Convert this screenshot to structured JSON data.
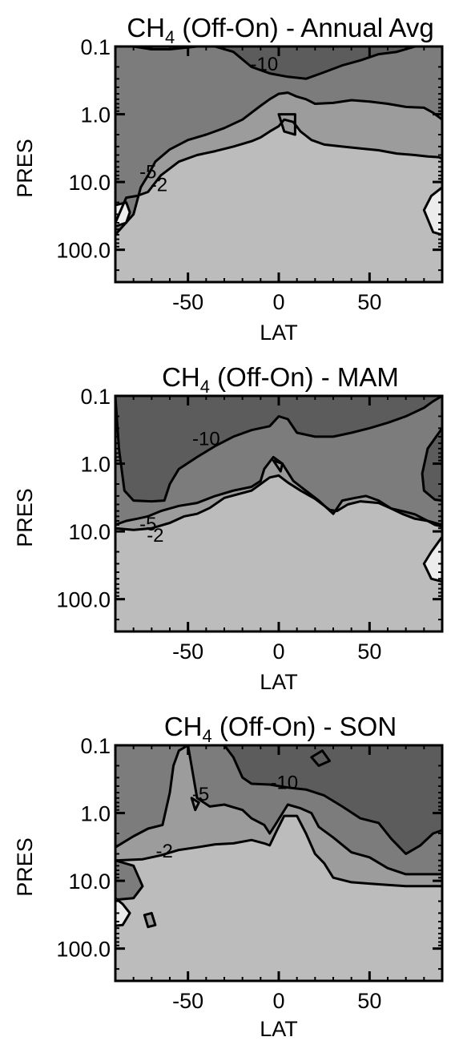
{
  "chart_data": [
    {
      "type": "contour",
      "title_base": "CH",
      "title_sub": "4",
      "title_rest": " (Off-On) - Annual Avg",
      "xlabel": "LAT",
      "ylabel": "PRES",
      "xlim": [
        -90,
        90
      ],
      "ylim": [
        0.1,
        300
      ],
      "ylog": true,
      "yreversed": true,
      "xticks": [
        {
          "v": -50,
          "label": "-50"
        },
        {
          "v": 0,
          "label": "0"
        },
        {
          "v": 50,
          "label": "50"
        }
      ],
      "yticks": [
        {
          "v": 0.1,
          "label": "0.1"
        },
        {
          "v": 1.0,
          "label": "1.0"
        },
        {
          "v": 10.0,
          "label": "10.0"
        },
        {
          "v": 100.0,
          "label": "100.0"
        }
      ],
      "contour_labels": [
        {
          "text": "-10",
          "lat": -8,
          "p": 0.19
        },
        {
          "text": "-5",
          "lat": -72,
          "p": 7.4
        },
        {
          "text": "-2",
          "lat": -66,
          "p": 11.5
        }
      ],
      "boundaries": {
        "m10": [
          [
            -90,
            0.1
          ],
          [
            -80,
            0.1
          ],
          [
            -70,
            0.11
          ],
          [
            -60,
            0.11
          ],
          [
            -45,
            0.1
          ],
          [
            -35,
            0.1
          ],
          [
            -25,
            0.12
          ],
          [
            -15,
            0.2
          ],
          [
            -5,
            0.25
          ],
          [
            5,
            0.28
          ],
          [
            15,
            0.3
          ],
          [
            25,
            0.24
          ],
          [
            35,
            0.19
          ],
          [
            45,
            0.16
          ],
          [
            55,
            0.13
          ],
          [
            65,
            0.12
          ],
          [
            75,
            0.1
          ],
          [
            90,
            0.1
          ]
        ],
        "m5": [
          [
            -90,
            60
          ],
          [
            -80,
            30
          ],
          [
            -76,
            12
          ],
          [
            -72,
            8
          ],
          [
            -68,
            5
          ],
          [
            -60,
            3.3
          ],
          [
            -50,
            2.4
          ],
          [
            -40,
            2.0
          ],
          [
            -30,
            1.6
          ],
          [
            -20,
            1.2
          ],
          [
            -10,
            0.75
          ],
          [
            -5,
            0.6
          ],
          [
            0,
            0.5
          ],
          [
            5,
            0.48
          ],
          [
            10,
            0.55
          ],
          [
            15,
            0.6
          ],
          [
            20,
            0.7
          ],
          [
            30,
            0.68
          ],
          [
            40,
            0.62
          ],
          [
            50,
            0.65
          ],
          [
            60,
            0.7
          ],
          [
            70,
            0.78
          ],
          [
            80,
            0.8
          ],
          [
            85,
            0.95
          ],
          [
            90,
            1.2
          ]
        ],
        "m2": [
          [
            -90,
            40
          ],
          [
            -84,
            17
          ],
          [
            -78,
            16
          ],
          [
            -72,
            14
          ],
          [
            -65,
            8
          ],
          [
            -55,
            5
          ],
          [
            -45,
            4
          ],
          [
            -35,
            3.5
          ],
          [
            -25,
            3
          ],
          [
            -15,
            2.5
          ],
          [
            -10,
            2.2
          ],
          [
            -5,
            1.8
          ],
          [
            0,
            1.5
          ],
          [
            3,
            1.2
          ],
          [
            8,
            1.3
          ],
          [
            12,
            1.8
          ],
          [
            18,
            2.4
          ],
          [
            25,
            2.8
          ],
          [
            35,
            3.0
          ],
          [
            45,
            3.2
          ],
          [
            55,
            3.4
          ],
          [
            65,
            3.8
          ],
          [
            75,
            4.0
          ],
          [
            82,
            4.2
          ],
          [
            88,
            4.3
          ],
          [
            90,
            4.5
          ]
        ],
        "islands_m5": [
          [
            [
              0,
              1.0
            ],
            [
              9,
              1.0
            ],
            [
              9,
              2.0
            ],
            [
              3,
              1.8
            ]
          ]
        ],
        "islands_pos": [
          [
            [
              -90,
              22
            ],
            [
              -84,
              20
            ],
            [
              -82,
              28
            ],
            [
              -84,
              40
            ],
            [
              -90,
              45
            ]
          ],
          [
            [
              90,
              12
            ],
            [
              84,
              16
            ],
            [
              80,
              26
            ],
            [
              85,
              55
            ],
            [
              90,
              60
            ]
          ]
        ]
      }
    },
    {
      "type": "contour",
      "title_base": "CH",
      "title_sub": "4",
      "title_rest": " (Off-On) - MAM",
      "xlabel": "LAT",
      "ylabel": "PRES",
      "xlim": [
        -90,
        90
      ],
      "ylim": [
        0.1,
        300
      ],
      "ylog": true,
      "yreversed": true,
      "xticks": [
        {
          "v": -50,
          "label": "-50"
        },
        {
          "v": 0,
          "label": "0"
        },
        {
          "v": 50,
          "label": "50"
        }
      ],
      "yticks": [
        {
          "v": 0.1,
          "label": "0.1"
        },
        {
          "v": 1.0,
          "label": "1.0"
        },
        {
          "v": 10.0,
          "label": "10.0"
        },
        {
          "v": 100.0,
          "label": "100.0"
        }
      ],
      "contour_labels": [
        {
          "text": "-10",
          "lat": -40,
          "p": 0.45
        },
        {
          "text": "-5",
          "lat": -72,
          "p": 8.2
        },
        {
          "text": "-2",
          "lat": -68,
          "p": 12
        }
      ],
      "boundaries": {
        "m10": [
          [
            -90,
            0.1
          ],
          [
            -88,
            0.6
          ],
          [
            -85,
            2.5
          ],
          [
            -80,
            3.5
          ],
          [
            -70,
            3.6
          ],
          [
            -63,
            3.5
          ],
          [
            -60,
            2.0
          ],
          [
            -55,
            1.2
          ],
          [
            -45,
            0.8
          ],
          [
            -35,
            0.55
          ],
          [
            -25,
            0.4
          ],
          [
            -15,
            0.32
          ],
          [
            -5,
            0.28
          ],
          [
            0,
            0.2
          ],
          [
            5,
            0.22
          ],
          [
            10,
            0.35
          ],
          [
            20,
            0.4
          ],
          [
            30,
            0.4
          ],
          [
            40,
            0.35
          ],
          [
            50,
            0.3
          ],
          [
            60,
            0.25
          ],
          [
            70,
            0.2
          ],
          [
            80,
            0.15
          ],
          [
            85,
            0.12
          ],
          [
            90,
            0.1
          ]
        ],
        "m5": [
          [
            -90,
            8
          ],
          [
            -84,
            7
          ],
          [
            -78,
            6.5
          ],
          [
            -72,
            6
          ],
          [
            -65,
            5
          ],
          [
            -55,
            4.2
          ],
          [
            -45,
            3.8
          ],
          [
            -35,
            3
          ],
          [
            -25,
            2.5
          ],
          [
            -15,
            2.2
          ],
          [
            -10,
            1.8
          ],
          [
            -8,
            1.2
          ],
          [
            -3,
            0.8
          ],
          [
            2,
            1.0
          ],
          [
            8,
            1.8
          ],
          [
            14,
            2.4
          ],
          [
            22,
            3.5
          ],
          [
            30,
            5.5
          ],
          [
            35,
            3.5
          ],
          [
            42,
            3.2
          ],
          [
            48,
            3.0
          ],
          [
            55,
            3.5
          ],
          [
            62,
            4.6
          ],
          [
            68,
            5.5
          ],
          [
            75,
            6.5
          ],
          [
            82,
            7.0
          ],
          [
            86,
            7.5
          ],
          [
            90,
            8
          ]
        ],
        "m2": [
          [
            -90,
            9
          ],
          [
            -80,
            9.5
          ],
          [
            -70,
            9
          ],
          [
            -60,
            7.5
          ],
          [
            -52,
            6
          ],
          [
            -45,
            5.5
          ],
          [
            -38,
            4.5
          ],
          [
            -30,
            3.2
          ],
          [
            -22,
            2.8
          ],
          [
            -15,
            2.5
          ],
          [
            -10,
            2.0
          ],
          [
            -5,
            1.6
          ],
          [
            0,
            1.5
          ],
          [
            5,
            1.9
          ],
          [
            12,
            2.5
          ],
          [
            20,
            3.3
          ],
          [
            28,
            4.8
          ],
          [
            32,
            5.0
          ],
          [
            38,
            4.0
          ],
          [
            45,
            3.6
          ],
          [
            55,
            3.8
          ],
          [
            62,
            4.6
          ],
          [
            68,
            5.0
          ],
          [
            75,
            5.6
          ],
          [
            82,
            7.0
          ],
          [
            86,
            8.0
          ],
          [
            90,
            8.5
          ]
        ],
        "islands_m10_right": [
          [
            [
              90,
              0.3
            ],
            [
              82,
              0.6
            ],
            [
              79,
              1.4
            ],
            [
              80,
              2.5
            ],
            [
              86,
              3.4
            ],
            [
              90,
              3.5
            ]
          ]
        ],
        "islands_m5": [
          [
            [
              -3,
              0.9
            ],
            [
              2,
              1.0
            ],
            [
              1,
              1.3
            ]
          ]
        ],
        "islands_pos": [
          [
            [
              90,
              12
            ],
            [
              84,
              20
            ],
            [
              80,
              30
            ],
            [
              84,
              50
            ],
            [
              90,
              55
            ]
          ]
        ]
      }
    },
    {
      "type": "contour",
      "title_base": "CH",
      "title_sub": "4",
      "title_rest": " (Off-On) - SON",
      "xlabel": "LAT",
      "ylabel": "PRES",
      "xlim": [
        -90,
        90
      ],
      "ylim": [
        0.1,
        300
      ],
      "ylog": true,
      "yreversed": true,
      "xticks": [
        {
          "v": -50,
          "label": "-50"
        },
        {
          "v": 0,
          "label": "0"
        },
        {
          "v": 50,
          "label": "50"
        }
      ],
      "yticks": [
        {
          "v": 0.1,
          "label": "0.1"
        },
        {
          "v": 1.0,
          "label": "1.0"
        },
        {
          "v": 10.0,
          "label": "10.0"
        },
        {
          "v": 100.0,
          "label": "100.0"
        }
      ],
      "contour_labels": [
        {
          "text": "-5",
          "lat": -43,
          "p": 0.55
        },
        {
          "text": "-10",
          "lat": 3,
          "p": 0.37
        },
        {
          "text": "-2",
          "lat": -63,
          "p": 3.8
        }
      ],
      "boundaries": {
        "m10": [
          [
            -90,
            0.1
          ],
          [
            -30,
            0.1
          ],
          [
            -25,
            0.15
          ],
          [
            -20,
            0.3
          ],
          [
            -15,
            0.37
          ],
          [
            -5,
            0.38
          ],
          [
            5,
            0.42
          ],
          [
            15,
            0.45
          ],
          [
            25,
            0.55
          ],
          [
            35,
            0.8
          ],
          [
            45,
            1.2
          ],
          [
            55,
            1.4
          ],
          [
            62,
            2.4
          ],
          [
            70,
            4.0
          ],
          [
            78,
            3.0
          ],
          [
            85,
            2.0
          ],
          [
            90,
            1.8
          ]
        ],
        "m5": [
          [
            -90,
            3.2
          ],
          [
            -80,
            2.2
          ],
          [
            -72,
            1.7
          ],
          [
            -64,
            1.5
          ],
          [
            -60,
            0.5
          ],
          [
            -58,
            0.2
          ],
          [
            -55,
            0.12
          ],
          [
            -50,
            0.1
          ],
          [
            -45,
            0.6
          ],
          [
            -38,
            0.8
          ],
          [
            -30,
            0.75
          ],
          [
            -20,
            0.9
          ],
          [
            -15,
            1.2
          ],
          [
            -8,
            1.5
          ],
          [
            -5,
            2.0
          ],
          [
            -2,
            1.5
          ],
          [
            5,
            0.75
          ],
          [
            12,
            0.85
          ],
          [
            18,
            1.0
          ],
          [
            22,
            1.6
          ],
          [
            30,
            2.3
          ],
          [
            40,
            3.8
          ],
          [
            50,
            4.5
          ],
          [
            60,
            6.5
          ],
          [
            70,
            8.0
          ],
          [
            80,
            8.0
          ],
          [
            90,
            8.0
          ]
        ],
        "m2": [
          [
            -90,
            5
          ],
          [
            -75,
            4.8
          ],
          [
            -65,
            4.2
          ],
          [
            -55,
            3.5
          ],
          [
            -45,
            3.2
          ],
          [
            -35,
            2.9
          ],
          [
            -25,
            2.8
          ],
          [
            -15,
            2.5
          ],
          [
            -8,
            2.8
          ],
          [
            -5,
            3.0
          ],
          [
            -1,
            1.8
          ],
          [
            3,
            1.1
          ],
          [
            10,
            1.1
          ],
          [
            15,
            2.0
          ],
          [
            20,
            4.0
          ],
          [
            25,
            5.5
          ],
          [
            30,
            9.0
          ],
          [
            40,
            10.5
          ],
          [
            50,
            11
          ],
          [
            60,
            11.5
          ],
          [
            70,
            12
          ],
          [
            80,
            12
          ],
          [
            90,
            12
          ]
        ],
        "islands_m5_left": [
          [
            [
              -90,
              5
            ],
            [
              -80,
              6
            ],
            [
              -75,
              12
            ],
            [
              -80,
              18
            ],
            [
              -90,
              19
            ]
          ]
        ],
        "islands_pos": [
          [
            [
              -90,
              18
            ],
            [
              -86,
              22
            ],
            [
              -82,
              30
            ],
            [
              -86,
              45
            ],
            [
              -90,
              46
            ]
          ]
        ],
        "islands_m2_small": [
          [
            [
              -74,
              32
            ],
            [
              -70,
              30
            ],
            [
              -68,
              45
            ],
            [
              -72,
              48
            ]
          ]
        ],
        "islands_m10_small": [
          [
            [
              18,
              0.15
            ],
            [
              24,
              0.12
            ],
            [
              28,
              0.17
            ],
            [
              22,
              0.2
            ]
          ]
        ],
        "islands_m5_mid": [
          [
            [
              -48,
              0.6
            ],
            [
              -44,
              0.7
            ],
            [
              -46,
              0.9
            ]
          ]
        ]
      }
    }
  ]
}
